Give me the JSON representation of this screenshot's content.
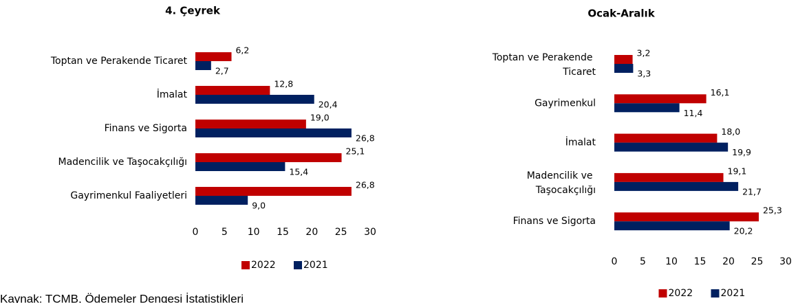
{
  "chart_data": [
    {
      "type": "barh",
      "title": "4. Çeyrek",
      "categories": [
        "Toptan ve Perakende Ticaret",
        "İmalat",
        "Finans ve Sigorta",
        "Madencilik ve Taşocakçılığı",
        "Gayrimenkul Faaliyetleri"
      ],
      "series": [
        {
          "name": "2022",
          "color": "#c00000",
          "values": [
            6.2,
            12.8,
            19.0,
            25.1,
            26.8
          ],
          "value_labels": [
            "6,2",
            "12,8",
            "19,0",
            "25,1",
            "26,8"
          ]
        },
        {
          "name": "2021",
          "color": "#002060",
          "values": [
            2.7,
            20.4,
            26.8,
            15.4,
            9.0
          ],
          "value_labels": [
            "2,7",
            "20,4",
            "26,8",
            "15,4",
            "9,0"
          ]
        }
      ],
      "xlim": [
        0,
        30
      ],
      "xticks": [
        0,
        5,
        10,
        15,
        20,
        25,
        30
      ],
      "legend": "bottom"
    },
    {
      "type": "barh",
      "title": "Ocak-Aralık",
      "categories": [
        "Toptan ve Perakende Ticaret",
        "Gayrimenkul",
        "İmalat",
        "Madencilik ve Taşocakçılığı",
        "Finans ve Sigorta"
      ],
      "series": [
        {
          "name": "2022",
          "color": "#c00000",
          "values": [
            3.2,
            16.1,
            18.0,
            19.1,
            25.3
          ],
          "value_labels": [
            "3,2",
            "16,1",
            "18,0",
            "19,1",
            "25,3"
          ]
        },
        {
          "name": "2021",
          "color": "#002060",
          "values": [
            3.3,
            11.4,
            19.9,
            21.7,
            20.2
          ],
          "value_labels": [
            "3,3",
            "11,4",
            "19,9",
            "21,7",
            "20,2"
          ]
        }
      ],
      "xlim": [
        0,
        30
      ],
      "xticks": [
        0,
        5,
        10,
        15,
        20,
        25,
        30
      ],
      "legend": "bottom"
    }
  ],
  "source": "Kaynak: TCMB, Ödemeler Dengesi İstatistikleri"
}
